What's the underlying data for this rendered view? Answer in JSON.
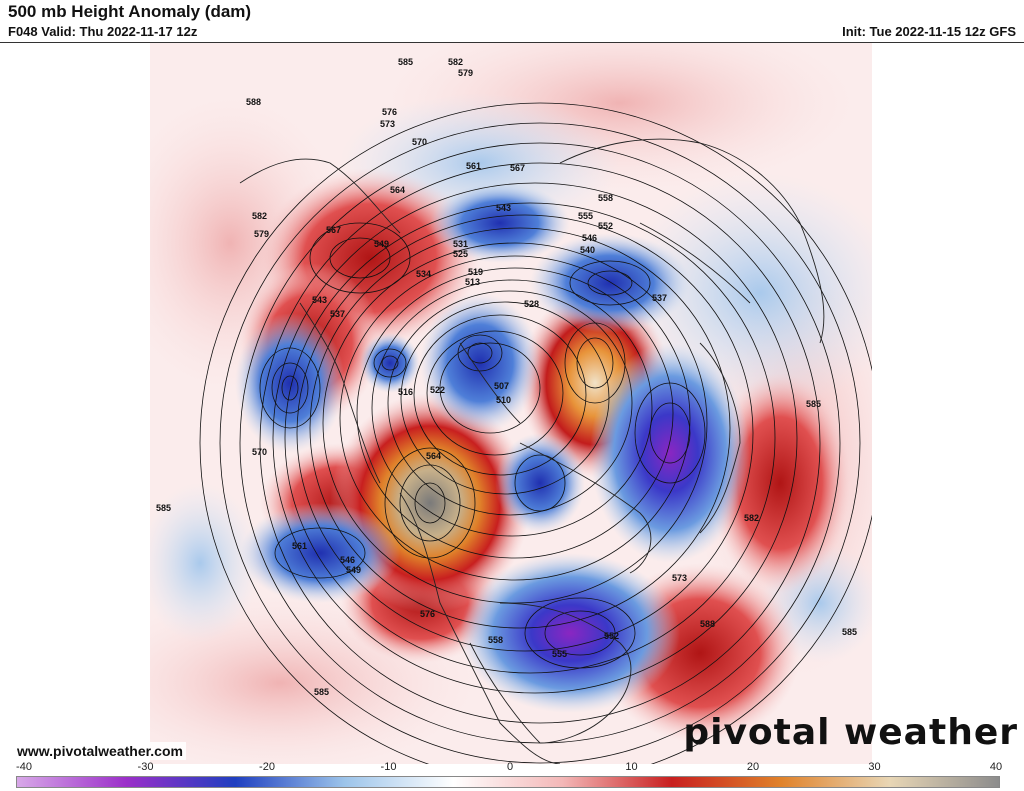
{
  "header": {
    "title": "500 mb Height Anomaly (dam)",
    "valid": "F048 Valid: Thu 2022-11-17 12z",
    "init": "Init: Tue 2022-11-15 12z GFS"
  },
  "footer": {
    "url": "www.pivotalweather.com",
    "brand": "pivotal weather"
  },
  "colorbar": {
    "ticks": [
      "-40",
      "-30",
      "-20",
      "-10",
      "0",
      "10",
      "20",
      "30",
      "40"
    ],
    "colors": {
      "neg_far": "#d8a8e8",
      "neg_violet": "#9b2fc9",
      "neg_blue": "#1f3fc0",
      "neg_light": "#9cc4ea",
      "neutral": "#ffffff",
      "pos_light": "#f3b7b7",
      "pos_red": "#c81f1f",
      "pos_orange": "#e0822a",
      "pos_tan": "#e8d6b5",
      "pos_gray": "#8c8c8c"
    }
  },
  "map": {
    "contour_labels": [
      "585",
      "579",
      "582",
      "588",
      "576",
      "573",
      "570",
      "561",
      "567",
      "564",
      "543",
      "558",
      "555",
      "552",
      "546",
      "540",
      "537",
      "531",
      "525",
      "519",
      "513",
      "534",
      "549",
      "528",
      "516",
      "522",
      "507",
      "510",
      "582",
      "579",
      "567",
      "585",
      "573",
      "570",
      "561",
      "558",
      "555",
      "546",
      "549",
      "552",
      "543",
      "537",
      "564",
      "576",
      "585",
      "588",
      "585",
      "582",
      "585"
    ]
  }
}
